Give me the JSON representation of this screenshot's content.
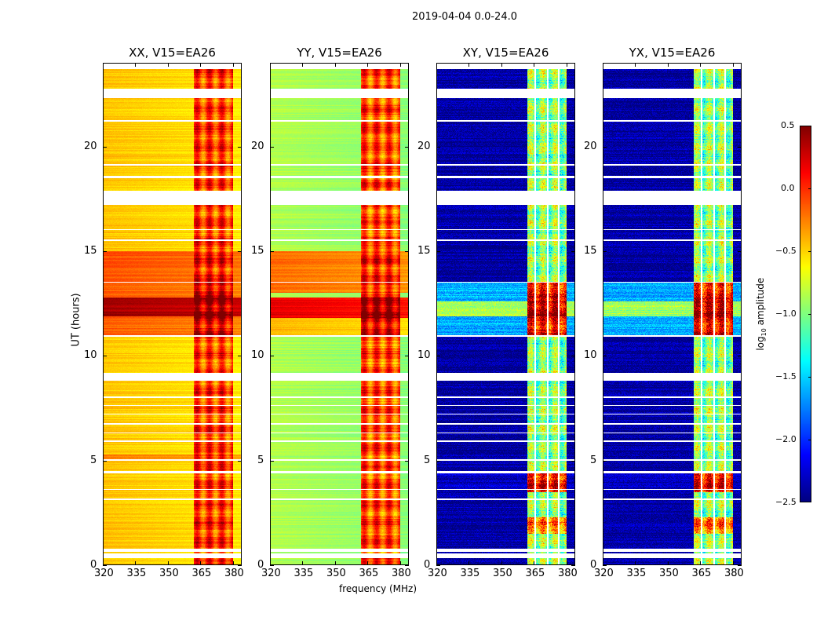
{
  "chart_data": {
    "type": "heatmap",
    "title": "2019-04-04 0.0-24.0",
    "xlabel": "frequency (MHz)",
    "ylabel": "UT (hours)",
    "xlim": [
      320,
      384
    ],
    "ylim": [
      0,
      24
    ],
    "xticks": [
      "320",
      "335",
      "350",
      "365",
      "380"
    ],
    "xtick_values": [
      320,
      335,
      350,
      365,
      380
    ],
    "yticks": [
      "0",
      "5",
      "10",
      "15",
      "20"
    ],
    "ytick_values": [
      0,
      5,
      10,
      15,
      20
    ],
    "rfi_band_mhz": [
      362,
      380
    ],
    "flagged_hours": [
      [
        23.7,
        24.0
      ],
      [
        22.3,
        22.75
      ],
      [
        17.2,
        17.9
      ],
      [
        8.8,
        9.2
      ],
      [
        0.35,
        0.55
      ],
      [
        0.62,
        0.78
      ],
      [
        3.1,
        3.2
      ],
      [
        3.6,
        3.65
      ],
      [
        4.4,
        4.5
      ],
      [
        5.0,
        5.05
      ],
      [
        5.9,
        5.95
      ],
      [
        6.3,
        6.35
      ],
      [
        6.7,
        6.8
      ],
      [
        7.2,
        7.25
      ],
      [
        7.6,
        7.65
      ],
      [
        8.0,
        8.05
      ],
      [
        18.5,
        18.6
      ],
      [
        19.1,
        19.15
      ],
      [
        21.2,
        21.25
      ],
      [
        16.0,
        16.05
      ],
      [
        15.5,
        15.55
      ],
      [
        10.9,
        11.0
      ],
      [
        13.5,
        13.55
      ]
    ],
    "panels": [
      {
        "title": "XX, V15=EA26",
        "base": -0.45,
        "band": -0.05,
        "flag_columns_mhz": [],
        "segments": [
          {
            "t": [
              13.5,
              15
            ],
            "base": -0.1,
            "band": 0.05
          },
          {
            "t": [
              11,
              13.5
            ],
            "base": -0.15,
            "band": 0.2
          },
          {
            "t": [
              11.9,
              12.8
            ],
            "base": 0.4,
            "band": 0.4
          },
          {
            "t": [
              5,
              5.3
            ],
            "base": -0.2,
            "band": 0.2
          }
        ]
      },
      {
        "title": "YY, V15=EA26",
        "base": -0.85,
        "band": -0.1,
        "flag_columns_mhz": [],
        "segments": [
          {
            "t": [
              13,
              15
            ],
            "base": -0.2,
            "band": 0.0
          },
          {
            "t": [
              11,
              11.8
            ],
            "base": -0.4,
            "band": 0.2
          },
          {
            "t": [
              11.8,
              12.8
            ],
            "base": 0.2,
            "band": 0.4
          }
        ]
      },
      {
        "title": "XY, V15=EA26",
        "base": -2.4,
        "band": -1.0,
        "flag_columns_mhz": [
          365.5,
          371.5,
          376.5
        ],
        "segments": [
          {
            "t": [
              11,
              13.5
            ],
            "base": -1.6,
            "band": 0.1
          },
          {
            "t": [
              11.9,
              12.6
            ],
            "base": -0.9,
            "band": 0.3
          },
          {
            "t": [
              3.5,
              4.5
            ],
            "base": -2.3,
            "band": 0.1
          },
          {
            "t": [
              1.5,
              2.3
            ],
            "base": -2.4,
            "band": -0.3
          }
        ]
      },
      {
        "title": "YX, V15=EA26",
        "base": -2.4,
        "band": -1.0,
        "flag_columns_mhz": [
          365.5,
          371.5,
          376.5
        ],
        "segments": [
          {
            "t": [
              11,
              13.5
            ],
            "base": -1.6,
            "band": 0.1
          },
          {
            "t": [
              11.9,
              12.6
            ],
            "base": -0.9,
            "band": 0.3
          },
          {
            "t": [
              3.5,
              4.5
            ],
            "base": -2.3,
            "band": 0.1
          },
          {
            "t": [
              1.5,
              2.3
            ],
            "base": -2.4,
            "band": -0.3
          }
        ]
      }
    ],
    "colorbar": {
      "label": "log10 amplitude",
      "label_main": "log",
      "label_sub": "10",
      "label_rest": " amplitude",
      "colormap": "jet",
      "vmin": -2.5,
      "vmax": 0.5,
      "ticks": [
        "0.5",
        "0.0",
        "−0.5",
        "−1.0",
        "−1.5",
        "−2.0",
        "−2.5"
      ],
      "tick_values": [
        0.5,
        0.0,
        -0.5,
        -1.0,
        -1.5,
        -2.0,
        -2.5
      ]
    }
  }
}
